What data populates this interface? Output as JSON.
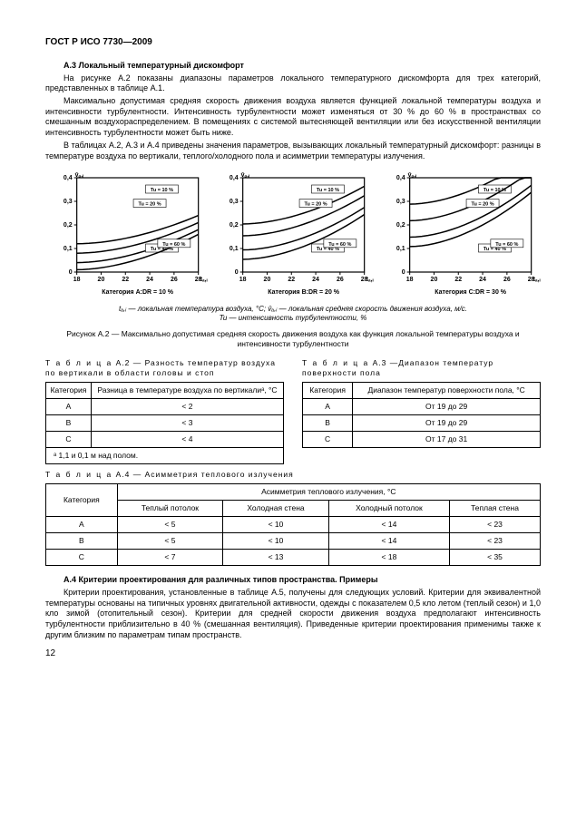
{
  "header": "ГОСТ Р ИСО 7730—2009",
  "a3": {
    "title": "А.3 Локальный температурный дискомфорт",
    "p1": "На рисунке А.2 показаны диапазоны параметров локального температурного дискомфорта для трех категорий, представленных в таблице А.1.",
    "p2": "Максимально допустимая средняя скорость движения воздуха является функцией локальной температуры воздуха и интенсивности турбулентности. Интенсивность турбулентности может изменяться от 30 % до 60 % в пространствах со смешанным воздухораспределением. В помещениях с системой вытесняющей вентиляции или без искусственной вентиляции интенсивность турбулентности может быть ниже.",
    "p3": "В таблицах А.2, А.3 и А.4 приведены значения параметров, вызывающих локальный температурный дискомфорт: разницы в температуре воздуха по вертикали, теплого/холодного пола и асимметрии температуры излучения."
  },
  "charts": {
    "ylabel": "v̄ₐ,ᵢ",
    "xlabel": "tₐ,ᵢ",
    "xticks": [
      "18",
      "20",
      "22",
      "24",
      "26",
      "28"
    ],
    "yticks": [
      "0",
      "0,1",
      "0,2",
      "0,3",
      "0,4"
    ],
    "panels": [
      {
        "caption": "Категория A:DR = 10 %",
        "curves": [
          "Tu = 10 %",
          "Tu = 20 %",
          "Tu = 40 %",
          "Tu = 60 %"
        ],
        "low": true
      },
      {
        "caption": "Категория B:DR = 20 %",
        "curves": [
          "Tu = 10 %",
          "Tu = 20 %",
          "Tu = 40 %",
          "Tu = 60 %"
        ],
        "low": false
      },
      {
        "caption": "Категория C:DR = 30 %",
        "curves": [
          "Tu = 10 %",
          "Tu = 20 %",
          "Tu = 40 %",
          "Tu = 60 %"
        ],
        "low": false,
        "high": true
      }
    ]
  },
  "legend": "tₐ,ᵢ — локальная температура воздуха, °C; v̄ₐ,ᵢ — локальная средняя скорость движения воздуха, м/с.\nTu — интенсивность турбулентности, %",
  "fig_caption": "Рисунок А.2 — Максимально допустимая средняя скорость движения воздуха как функция локальной температуры воздуха и интенсивности турбулентности",
  "tableA2": {
    "title_prefix": "Т а б л и ц а",
    "title": "  А.2 — Разность температур воздуха по вертикали в области головы и стоп",
    "h1": "Категория",
    "h2": "Разница в температуре воздуха по вертикалиᵃ, °C",
    "rows": [
      [
        "A",
        "< 2"
      ],
      [
        "B",
        "< 3"
      ],
      [
        "C",
        "< 4"
      ]
    ],
    "foot": "ᵃ 1,1 и 0,1 м над полом."
  },
  "tableA3": {
    "title": "  А.3 —Диапазон температур поверхности пола",
    "h1": "Категория",
    "h2": "Диапазон температур поверхности пола, °C",
    "rows": [
      [
        "A",
        "От 19 до 29"
      ],
      [
        "B",
        "От 19 до 29"
      ],
      [
        "C",
        "От 17 до 31"
      ]
    ]
  },
  "tableA4": {
    "title": "  А.4 — Асимметрия теплового излучения",
    "h1": "Категория",
    "h2": "Асимметрия теплового излучения, °C",
    "cols": [
      "Теплый потолок",
      "Холодная стена",
      "Холодный потолок",
      "Теплая стена"
    ],
    "rows": [
      [
        "A",
        "< 5",
        "< 10",
        "< 14",
        "< 23"
      ],
      [
        "B",
        "< 5",
        "< 10",
        "< 14",
        "< 23"
      ],
      [
        "C",
        "< 7",
        "< 13",
        "< 18",
        "< 35"
      ]
    ]
  },
  "a4": {
    "title": "А.4 Критерии проектирования для различных типов пространства. Примеры",
    "p1": "Критерии проектирования, установленные в таблице А.5, получены для следующих условий. Критерии для эквивалентной температуры основаны на типичных уровнях двигательной активности, одежды с показателем 0,5 кло летом (теплый сезон) и 1,0 кло зимой (отопительный сезон). Критерии для средней скорости движения воздуха предполагают интенсивность турбулентности приблизительно в 40 % (смешанная вентиляция). Приведенные критерии проектирования применимы также к другим близким по параметрам типам пространств."
  },
  "page": "12"
}
